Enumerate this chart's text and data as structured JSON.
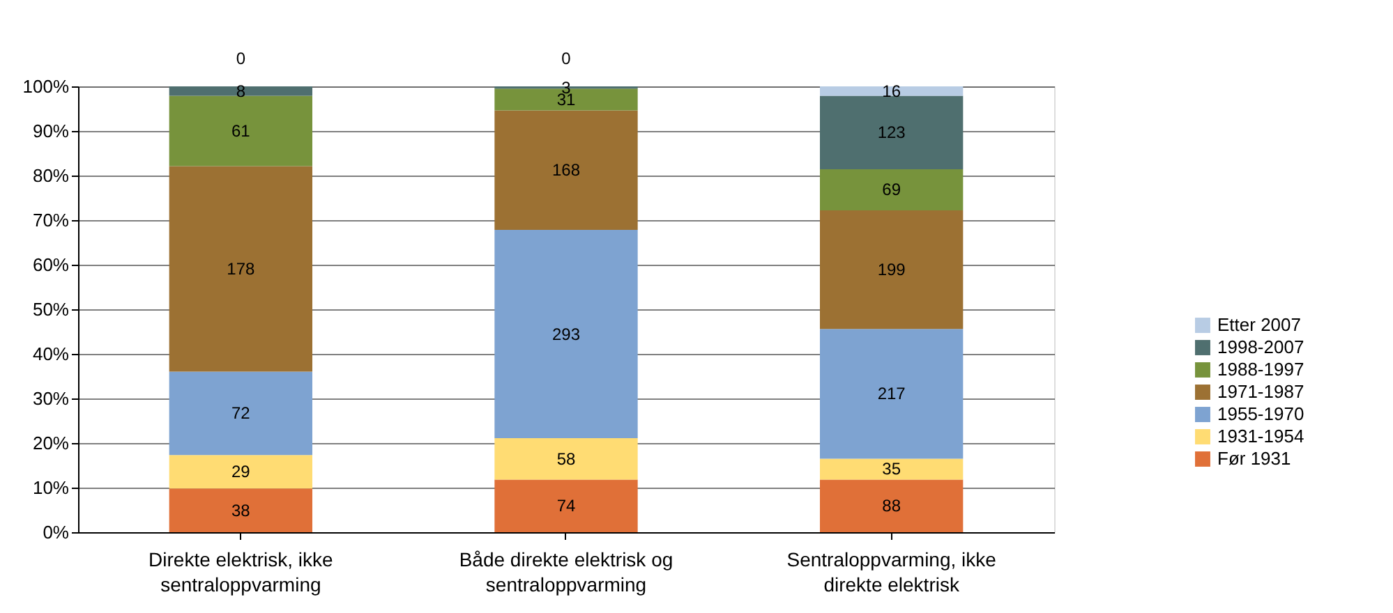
{
  "chart_data": {
    "type": "bar",
    "stacked": true,
    "categories": [
      "Direkte elektrisk, ikke sentraloppvarming",
      "Både direkte elektrisk og sentraloppvarming",
      "Sentraloppvarming, ikke direkte elektrisk"
    ],
    "series": [
      {
        "name": "Før 1931",
        "color": "#e07038",
        "values": [
          9.8,
          11.8,
          11.8
        ]
      },
      {
        "name": "1931-1954",
        "color": "#ffdc73",
        "values": [
          7.5,
          9.3,
          4.7
        ]
      },
      {
        "name": "1955-1970",
        "color": "#7ea3d1",
        "values": [
          18.7,
          46.7,
          29.1
        ]
      },
      {
        "name": "1971-1987",
        "color": "#9c7133",
        "values": [
          46.1,
          26.8,
          26.6
        ]
      },
      {
        "name": "1988-1997",
        "color": "#77933c",
        "values": [
          15.8,
          4.9,
          9.2
        ]
      },
      {
        "name": "1998-2007",
        "color": "#4f6f6f",
        "values": [
          2.1,
          0.5,
          16.5
        ]
      },
      {
        "name": "Etter 2007",
        "color": "#b8cce4",
        "values": [
          0,
          0,
          2.1
        ]
      }
    ],
    "annotations": [
      "38",
      "74",
      "88",
      "29",
      "58",
      "35",
      "72",
      "293",
      "217",
      "178",
      "168",
      "199",
      "61",
      "31",
      "69",
      "8",
      "3",
      "123",
      "0",
      "0",
      "16"
    ],
    "ylim": [
      0,
      100
    ],
    "yticks": [
      {
        "value": 0,
        "label": "0%"
      },
      {
        "value": 10,
        "label": "10%"
      },
      {
        "value": 20,
        "label": "20%"
      },
      {
        "value": 30,
        "label": "30%"
      },
      {
        "value": 40,
        "label": "40%"
      },
      {
        "value": 50,
        "label": "50%"
      },
      {
        "value": 60,
        "label": "60%"
      },
      {
        "value": 70,
        "label": "70%"
      },
      {
        "value": 80,
        "label": "80%"
      },
      {
        "value": 90,
        "label": "90%"
      },
      {
        "value": 100,
        "label": "100%"
      }
    ],
    "grid": "y",
    "legend": "right"
  }
}
